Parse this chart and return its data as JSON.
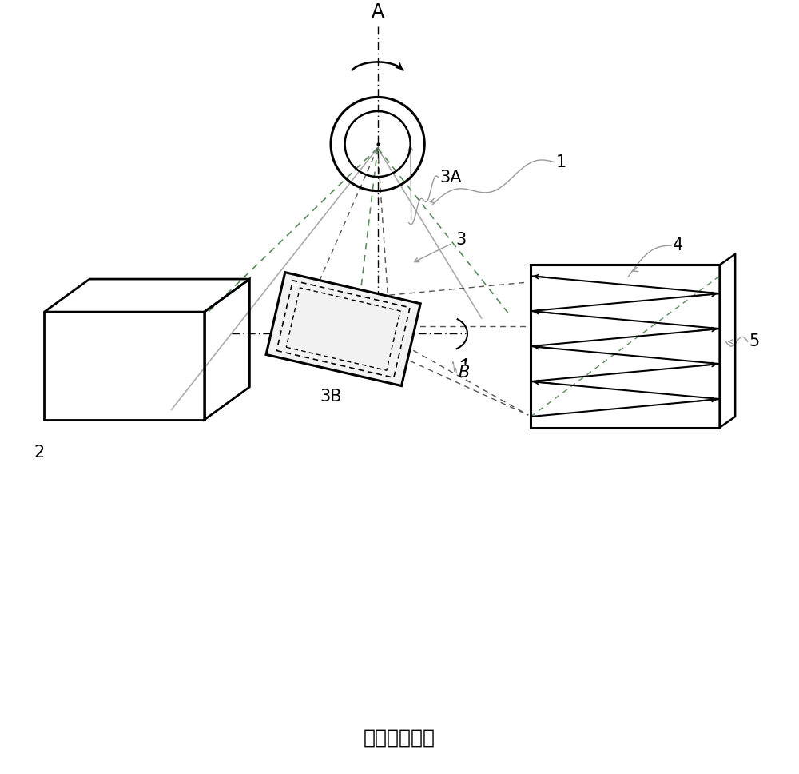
{
  "bg_color": "#ffffff",
  "title_text": "（现有技术）",
  "label_A": "A",
  "label_1": "1",
  "label_2": "2",
  "label_3": "3",
  "label_3A": "3A",
  "label_3B": "3B",
  "label_4": "4",
  "label_5": "5",
  "label_B": "B",
  "lc": "#000000",
  "gray_ann": "#999999",
  "dashed_beam": "#555555",
  "dashed_green": "#5a8a5a",
  "dashed_purple": "#9966aa"
}
